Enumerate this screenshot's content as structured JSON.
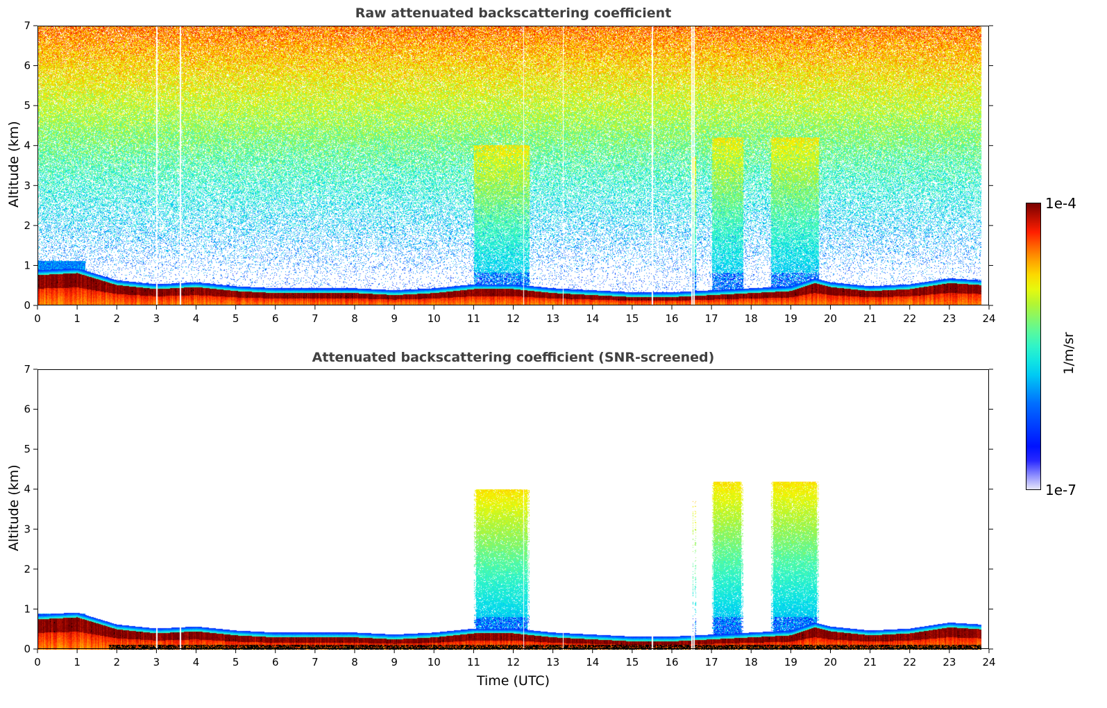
{
  "chart_data": [
    {
      "type": "heatmap",
      "title": "Raw attenuated backscattering coefficient",
      "xlabel": "",
      "ylabel": "Altitude (km)",
      "xlim": [
        0,
        24
      ],
      "ylim": [
        0,
        7
      ],
      "xticks": [
        "0",
        "1",
        "2",
        "3",
        "4",
        "5",
        "6",
        "7",
        "8",
        "9",
        "10",
        "11",
        "12",
        "13",
        "14",
        "15",
        "16",
        "17",
        "18",
        "19",
        "20",
        "21",
        "22",
        "23",
        "24"
      ],
      "yticks": [
        "0",
        "1",
        "2",
        "3",
        "4",
        "5",
        "6",
        "7"
      ],
      "data_end_hour": 23.8,
      "boundary_layer_top_km": {
        "hours": [
          0,
          1,
          2,
          3,
          4,
          5,
          6,
          7,
          8,
          9,
          10,
          11,
          12,
          13,
          14,
          15,
          16,
          17,
          18,
          19,
          19.6,
          20,
          21,
          22,
          23,
          23.8
        ],
        "km": [
          0.75,
          0.8,
          0.5,
          0.4,
          0.45,
          0.35,
          0.3,
          0.3,
          0.3,
          0.25,
          0.3,
          0.4,
          0.4,
          0.3,
          0.25,
          0.2,
          0.2,
          0.25,
          0.3,
          0.35,
          0.55,
          0.45,
          0.35,
          0.4,
          0.55,
          0.5
        ]
      },
      "elevated_layers": [
        {
          "start_hour": 11.0,
          "end_hour": 12.4,
          "top_km": 4.0
        },
        {
          "start_hour": 16.5,
          "end_hour": 16.6,
          "top_km": 3.7
        },
        {
          "start_hour": 17.0,
          "end_hour": 17.8,
          "top_km": 4.2
        },
        {
          "start_hour": 18.5,
          "end_hour": 19.7,
          "top_km": 4.2
        }
      ],
      "noise": true
    },
    {
      "type": "heatmap",
      "title": "Attenuated backscattering coefficient (SNR-screened)",
      "xlabel": "Time (UTC)",
      "ylabel": "Altitude (km)",
      "xlim": [
        0,
        24
      ],
      "ylim": [
        0,
        7
      ],
      "xticks": [
        "0",
        "1",
        "2",
        "3",
        "4",
        "5",
        "6",
        "7",
        "8",
        "9",
        "10",
        "11",
        "12",
        "13",
        "14",
        "15",
        "16",
        "17",
        "18",
        "19",
        "20",
        "21",
        "22",
        "23",
        "24"
      ],
      "yticks": [
        "0",
        "1",
        "2",
        "3",
        "4",
        "5",
        "6",
        "7"
      ],
      "noise": false
    }
  ],
  "colorbar": {
    "label": "1/m/sr",
    "max_label": "1e-4",
    "min_label": "1e-7",
    "scale": "log",
    "range": [
      1e-07,
      0.0001
    ]
  }
}
